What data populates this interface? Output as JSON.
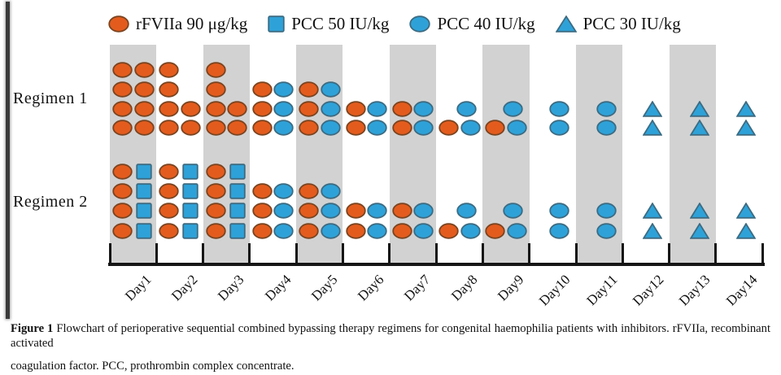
{
  "legend": {
    "items": [
      {
        "symbol": "orange-circle",
        "label": "rFVIIa 90 μg/kg"
      },
      {
        "symbol": "blue-square",
        "label": "PCC 50 IU/kg"
      },
      {
        "symbol": "blue-circle",
        "label": "PCC 40 IU/kg"
      },
      {
        "symbol": "blue-triangle",
        "label": "PCC 30 IU/kg"
      }
    ]
  },
  "caption": {
    "label": "Figure 1",
    "line1_rest": "Flowchart of perioperative sequential combined bypassing therapy regimens for congenital haemophilia patients with inhibitors. rFVIIa, recombinant activated",
    "line2": "coagulation factor. PCC, prothrombin complex concentrate."
  },
  "colors": {
    "orange_fill": "#E35C1E",
    "orange_stroke": "#7B4420",
    "blue_fill": "#2EA2D8",
    "blue_stroke": "#3C6B82",
    "band_gray": "#D2D2D2",
    "axis": "#161616"
  },
  "chart_data": {
    "type": "scatter",
    "subtype": "symbol-matrix-timeline",
    "title": "",
    "days": [
      "Day1",
      "Day2",
      "Day3",
      "Day4",
      "Day5",
      "Day6",
      "Day7",
      "Day8",
      "Day9",
      "Day10",
      "Day11",
      "Day12",
      "Day13",
      "Day14"
    ],
    "shaded_days": [
      1,
      3,
      5,
      7,
      9,
      11,
      13
    ],
    "symbol_codes": {
      "O": "rFVIIa 90 μg/kg (orange circle)",
      "S": "PCC 50 IU/kg (blue square)",
      "C": "PCC 40 IU/kg (blue circle)",
      "T": "PCC 30 IU/kg (blue triangle)"
    },
    "cell_legend": "Each cell string lists the symbols drawn that day in that row; '' = none",
    "regimens": [
      {
        "name": "Regimen 1",
        "rows": [
          [
            "OO",
            "O",
            "O",
            "",
            "",
            "",
            "",
            "",
            "",
            "",
            "",
            "",
            "",
            ""
          ],
          [
            "OO",
            "O",
            "O",
            "OC",
            "OC",
            "",
            "",
            "",
            "",
            "",
            "",
            "",
            "",
            ""
          ],
          [
            "OO",
            "OO",
            "OO",
            "OC",
            "OC",
            "OC",
            "OC",
            "C",
            "C",
            "C",
            "C",
            "T",
            "T",
            "T"
          ],
          [
            "OO",
            "OO",
            "OO",
            "OC",
            "OC",
            "OC",
            "OC",
            "OC",
            "OC",
            "C",
            "C",
            "T",
            "T",
            "T"
          ]
        ]
      },
      {
        "name": "Regimen 2",
        "rows": [
          [
            "OS",
            "OS",
            "OS",
            "",
            "",
            "",
            "",
            "",
            "",
            "",
            "",
            "",
            "",
            ""
          ],
          [
            "OS",
            "OS",
            "OS",
            "OC",
            "OC",
            "",
            "",
            "",
            "",
            "",
            "",
            "",
            "",
            ""
          ],
          [
            "OS",
            "OS",
            "OS",
            "OC",
            "OC",
            "OC",
            "OC",
            "C",
            "C",
            "C",
            "C",
            "T",
            "T",
            "T"
          ],
          [
            "OS",
            "OS",
            "OS",
            "OC",
            "OC",
            "OC",
            "OC",
            "OC",
            "OC",
            "C",
            "C",
            "T",
            "T",
            "T"
          ]
        ]
      }
    ],
    "legend_entries": [
      "rFVIIa 90 μg/kg",
      "PCC 50 IU/kg",
      "PCC 40 IU/kg",
      "PCC 30 IU/kg"
    ],
    "legend_position": "top",
    "grid": false
  }
}
